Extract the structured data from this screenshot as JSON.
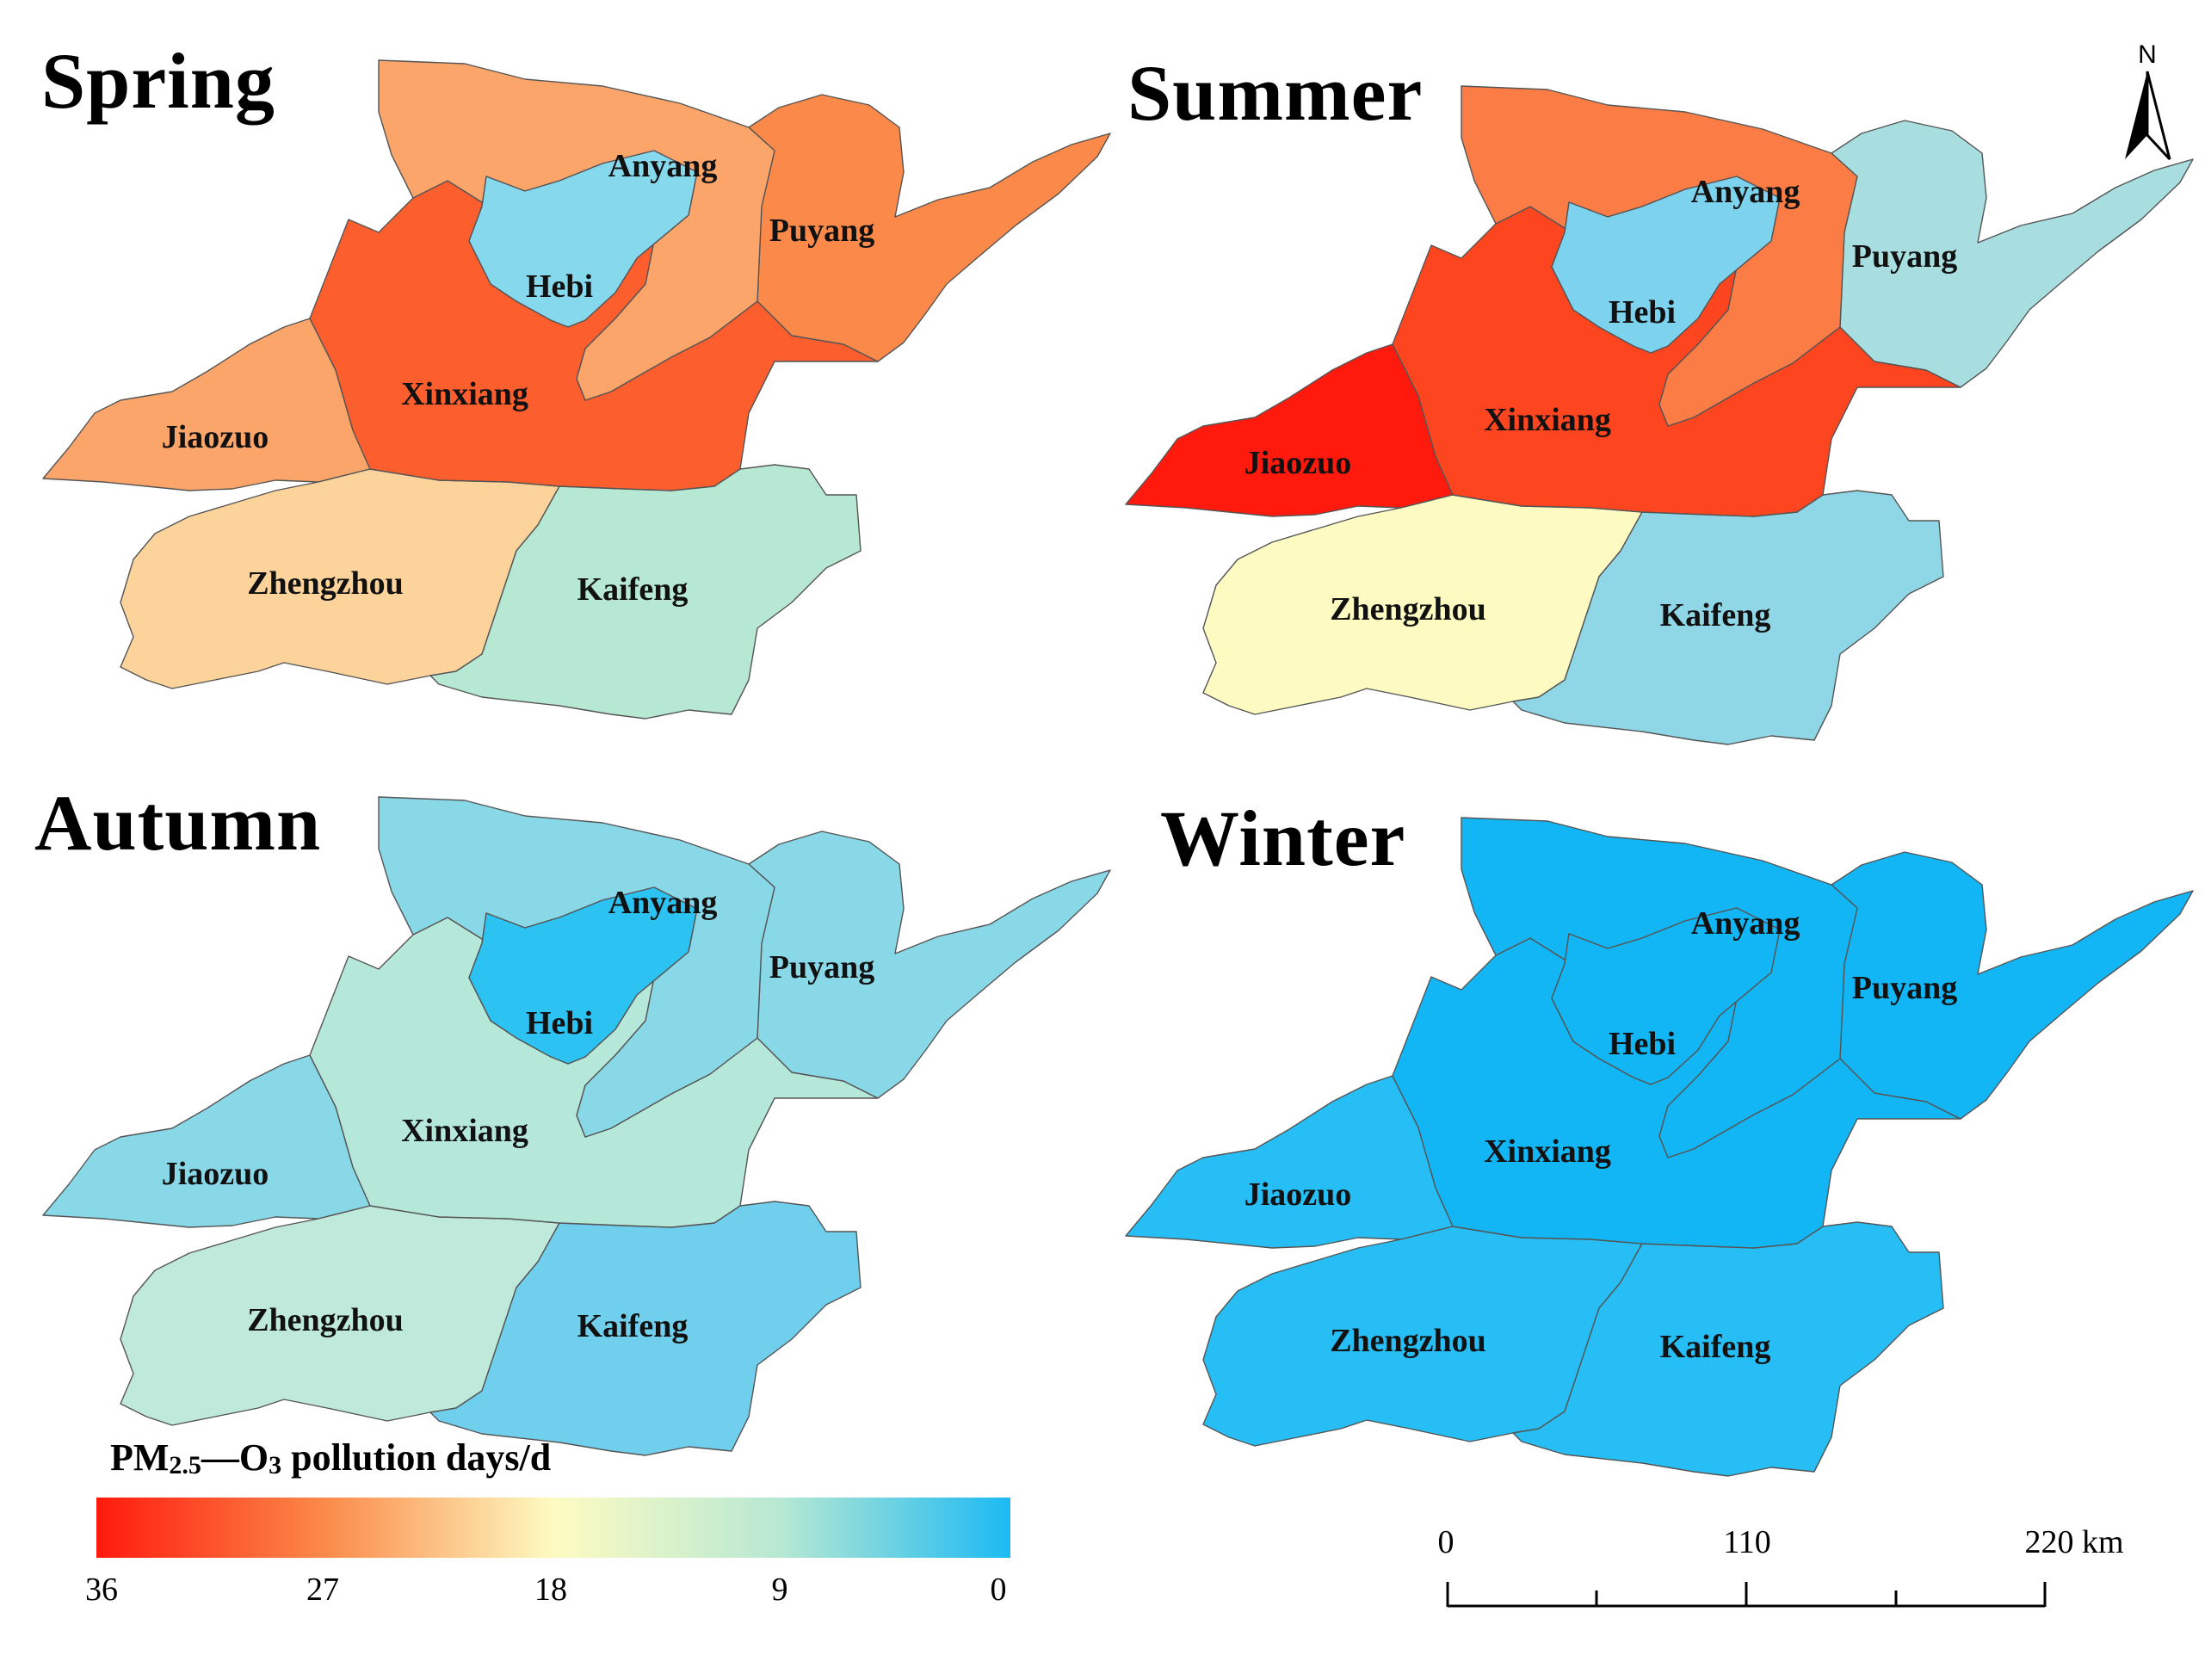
{
  "maps": [
    {
      "key": "spring",
      "title": "Spring",
      "colors": {
        "anyang": "#fba56a",
        "puyang": "#fb8a4a",
        "hebi": "#86d8ec",
        "xinxiang": "#fd5e2e",
        "jiaozuo": "#fba56a",
        "zhengzhou": "#fcd39a",
        "kaifeng": "#b6e8d3"
      }
    },
    {
      "key": "summer",
      "title": "Summer",
      "colors": {
        "anyang": "#fb7d45",
        "puyang": "#a8dee0",
        "hebi": "#7dd3ee",
        "xinxiang": "#fd4520",
        "jiaozuo": "#ff1a0d",
        "zhengzhou": "#fdfbc2",
        "kaifeng": "#8fd6e6"
      }
    },
    {
      "key": "autumn",
      "title": "Autumn",
      "colors": {
        "anyang": "#88d8e8",
        "puyang": "#88d8e8",
        "hebi": "#2cc3f2",
        "xinxiang": "#b6e8d9",
        "jiaozuo": "#88d8e8",
        "zhengzhou": "#bfeadb",
        "kaifeng": "#70cfec"
      }
    },
    {
      "key": "winter",
      "title": "Winter",
      "colors": {
        "anyang": "#13b6f5",
        "puyang": "#13b6f5",
        "hebi": "#13b6f5",
        "xinxiang": "#13b6f5",
        "jiaozuo": "#26bef5",
        "zhengzhou": "#26bef5",
        "kaifeng": "#26bef5"
      }
    }
  ],
  "cities": {
    "anyang": "Anyang",
    "puyang": "Puyang",
    "hebi": "Hebi",
    "xinxiang": "Xinxiang",
    "jiaozuo": "Jiaozuo",
    "zhengzhou": "Zhengzhou",
    "kaifeng": "Kaifeng"
  },
  "legend": {
    "title_main": "PM",
    "title_sub": "2.5",
    "title_mid": "—O",
    "title_sub2": "3",
    "title_tail": " pollution days/d",
    "ticks": [
      "36",
      "27",
      "18",
      "9",
      "0"
    ],
    "colors": [
      "#ff1a0d",
      "#fb8a4a",
      "#fdfbc2",
      "#b6e8d3",
      "#1cbaf3"
    ]
  },
  "scale": {
    "labels": [
      "0",
      "110",
      "220 km"
    ]
  },
  "north": {
    "label": "N"
  }
}
